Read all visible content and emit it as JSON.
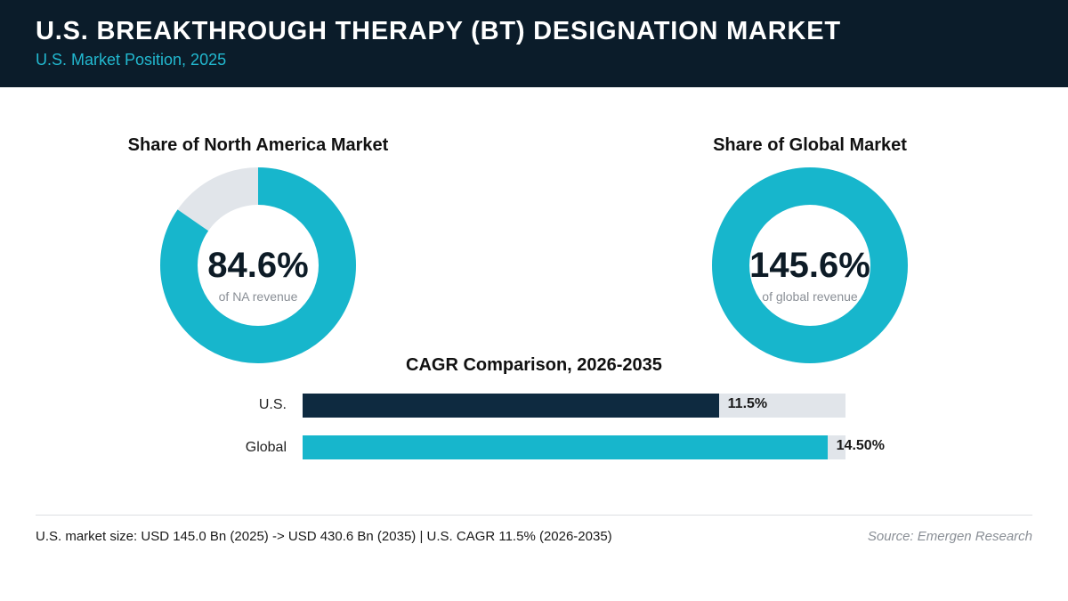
{
  "header": {
    "title": "U.S. BREAKTHROUGH THERAPY (BT) DESIGNATION MARKET",
    "subtitle": "U.S. Market Position, 2025"
  },
  "colors": {
    "header_bg": "#0b1c2a",
    "accent": "#17b6cc",
    "track": "#e1e5ea",
    "us_bar": "#0e2a40"
  },
  "chart_data": [
    {
      "type": "pie",
      "title": "Share of North America Market",
      "value": 84.6,
      "value_label": "84.6%",
      "caption": "of NA revenue"
    },
    {
      "type": "pie",
      "title": "Share of Global Market",
      "value": 145.6,
      "value_label": "145.6%",
      "caption": "of global revenue"
    },
    {
      "type": "bar",
      "title": "CAGR Comparison, 2026-2035",
      "categories": [
        "U.S.",
        "Global"
      ],
      "values": [
        11.5,
        14.5
      ],
      "value_labels": [
        "11.5%",
        "14.50%"
      ],
      "xlim": [
        0,
        15
      ]
    }
  ],
  "footer": {
    "note": "U.S. market size: USD 145.0 Bn (2025) -> USD 430.6 Bn (2035)  |  U.S. CAGR 11.5% (2026-2035)",
    "source": "Source: Emergen Research"
  }
}
